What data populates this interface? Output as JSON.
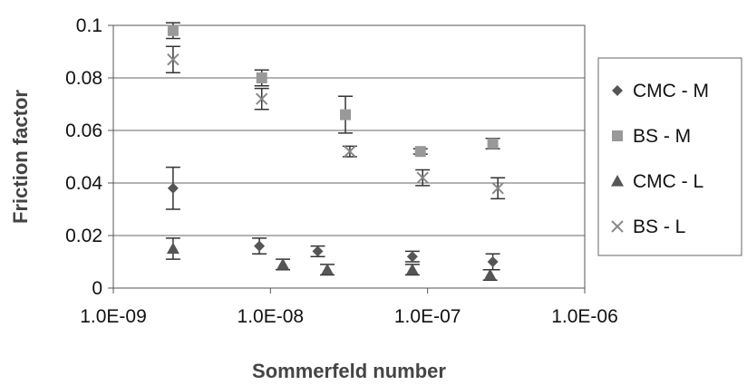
{
  "chart_data": {
    "type": "scatter",
    "title": "",
    "xlabel": "Sommerfeld number",
    "ylabel": "Friction factor",
    "xscale": "log",
    "xlim": [
      1e-09,
      1e-06
    ],
    "ylim": [
      0,
      0.1
    ],
    "x_tick_labels": [
      "1.0E-09",
      "1.0E-08",
      "1.0E-07",
      "1.0E-06"
    ],
    "y_tick_labels": [
      "0",
      "0.02",
      "0.04",
      "0.06",
      "0.08",
      "0.1"
    ],
    "grid": "horizontal",
    "legend_position": "right",
    "series": [
      {
        "name": "CMC - M",
        "marker": "diamond",
        "color": "#555555",
        "points": [
          {
            "x": 2.4e-09,
            "y": 0.038,
            "err": 0.008
          },
          {
            "x": 8.5e-09,
            "y": 0.016,
            "err": 0.003
          },
          {
            "x": 2e-08,
            "y": 0.014,
            "err": 0.002
          },
          {
            "x": 8e-08,
            "y": 0.012,
            "err": 0.002
          },
          {
            "x": 2.6e-07,
            "y": 0.01,
            "err": 0.003
          }
        ]
      },
      {
        "name": "BS - M",
        "marker": "square",
        "color": "#999999",
        "points": [
          {
            "x": 2.4e-09,
            "y": 0.098,
            "err": 0.003
          },
          {
            "x": 8.8e-09,
            "y": 0.08,
            "err": 0.003
          },
          {
            "x": 3e-08,
            "y": 0.066,
            "err": 0.007
          },
          {
            "x": 9e-08,
            "y": 0.052,
            "err": 0.001
          },
          {
            "x": 2.6e-07,
            "y": 0.055,
            "err": 0.002
          }
        ]
      },
      {
        "name": "CMC - L",
        "marker": "triangle",
        "color": "#555555",
        "points": [
          {
            "x": 2.4e-09,
            "y": 0.015,
            "err": 0.004
          },
          {
            "x": 1.2e-08,
            "y": 0.009,
            "err": 0.002
          },
          {
            "x": 2.3e-08,
            "y": 0.007,
            "err": 0.002
          },
          {
            "x": 8e-08,
            "y": 0.007,
            "err": 0.002
          },
          {
            "x": 2.5e-07,
            "y": 0.005,
            "err": 0.002
          }
        ]
      },
      {
        "name": "BS - L",
        "marker": "cross",
        "color": "#888888",
        "points": [
          {
            "x": 2.4e-09,
            "y": 0.087,
            "err": 0.005
          },
          {
            "x": 8.8e-09,
            "y": 0.072,
            "err": 0.004
          },
          {
            "x": 3.2e-08,
            "y": 0.052,
            "err": 0.002
          },
          {
            "x": 9.3e-08,
            "y": 0.042,
            "err": 0.003
          },
          {
            "x": 2.8e-07,
            "y": 0.038,
            "err": 0.004
          }
        ]
      }
    ]
  }
}
